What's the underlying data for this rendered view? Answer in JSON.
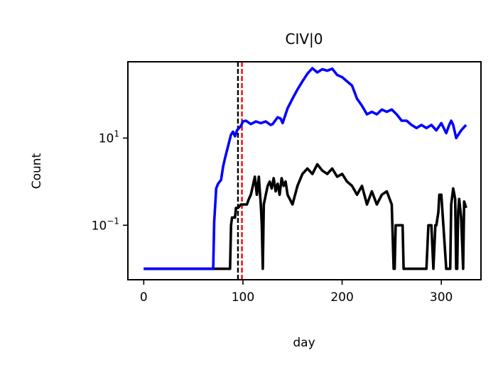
{
  "chart_data": {
    "type": "line",
    "title": "CIV|0",
    "xlabel": "day",
    "ylabel": "Count",
    "xlim": [
      -16,
      340
    ],
    "ylim_log10": [
      -2.25,
      2.75
    ],
    "yscale": "log",
    "xticks": [
      0,
      100,
      200,
      300
    ],
    "xtick_labels": [
      "0",
      "100",
      "200",
      "300"
    ],
    "yticks": [
      {
        "value_log10": 1,
        "base": "10",
        "exp": "1"
      },
      {
        "value_log10": -1,
        "base": "10",
        "exp": "−1"
      }
    ],
    "grid": false,
    "vlines": [
      {
        "x": 95,
        "color": "#000000",
        "style": "dashed"
      },
      {
        "x": 99,
        "color": "#ff0000",
        "style": "dashed"
      }
    ],
    "series": [
      {
        "color": "#0000ff",
        "x": [
          0,
          70,
          71,
          73,
          75,
          78,
          80,
          82,
          85,
          88,
          90,
          92,
          94,
          96,
          98,
          100,
          103,
          108,
          113,
          118,
          123,
          128,
          130,
          135,
          138,
          140,
          145,
          150,
          155,
          160,
          165,
          170,
          175,
          180,
          185,
          190,
          195,
          200,
          205,
          210,
          215,
          220,
          225,
          230,
          235,
          240,
          245,
          250,
          255,
          260,
          265,
          270,
          275,
          280,
          285,
          290,
          295,
          300,
          305,
          308,
          310,
          312,
          315,
          320,
          325
        ],
        "y": [
          0.01,
          0.01,
          0.12,
          0.7,
          0.9,
          1.1,
          2.2,
          3.5,
          6.5,
          12,
          14,
          11,
          15,
          17,
          19,
          24,
          25,
          21,
          24,
          22,
          24,
          20,
          21,
          30,
          28,
          22,
          48,
          80,
          130,
          200,
          300,
          400,
          320,
          380,
          350,
          390,
          280,
          250,
          200,
          160,
          80,
          55,
          35,
          40,
          35,
          45,
          40,
          45,
          35,
          25,
          25,
          20,
          17,
          20,
          17,
          20,
          15,
          22,
          13,
          20,
          25,
          20,
          10,
          15,
          20
        ]
      },
      {
        "color": "#000000",
        "x": [
          0,
          87,
          88,
          89,
          92,
          93,
          95,
          98,
          100,
          102,
          104,
          106,
          108,
          110,
          112,
          114,
          116,
          117,
          118,
          119,
          120,
          121,
          123,
          125,
          127,
          129,
          131,
          133,
          135,
          137,
          139,
          141,
          143,
          145,
          150,
          155,
          160,
          165,
          170,
          175,
          180,
          185,
          190,
          195,
          200,
          205,
          210,
          215,
          220,
          225,
          230,
          235,
          240,
          245,
          250,
          252,
          253,
          254,
          258,
          261,
          262,
          263,
          268,
          285,
          287,
          288,
          290,
          292,
          294,
          295,
          297,
          298,
          300,
          305,
          309,
          310,
          312,
          314,
          315,
          316,
          317,
          318,
          320,
          322,
          323,
          325
        ],
        "y": [
          0.01,
          0.01,
          0.1,
          0.15,
          0.15,
          0.25,
          0.25,
          0.3,
          0.3,
          0.3,
          0.3,
          0.4,
          0.5,
          0.8,
          1.3,
          0.5,
          1.3,
          0.6,
          0.3,
          0.1,
          0.01,
          0.3,
          0.5,
          0.8,
          1.0,
          0.7,
          1.2,
          0.6,
          0.9,
          0.5,
          1.2,
          0.8,
          1.0,
          0.5,
          0.3,
          0.8,
          1.5,
          2.0,
          1.5,
          2.5,
          1.8,
          1.5,
          2.0,
          1.3,
          1.5,
          1.0,
          0.8,
          0.5,
          0.8,
          0.3,
          0.6,
          0.3,
          0.5,
          0.6,
          0.3,
          0.01,
          0.01,
          0.1,
          0.1,
          0.1,
          0.01,
          0.01,
          0.01,
          0.01,
          0.1,
          0.1,
          0.1,
          0.01,
          0.1,
          0.1,
          0.2,
          0.5,
          0.5,
          0.01,
          0.01,
          0.3,
          0.7,
          0.4,
          0.01,
          0.01,
          0.2,
          0.4,
          0.15,
          0.01,
          0.35,
          0.25
        ]
      }
    ]
  }
}
